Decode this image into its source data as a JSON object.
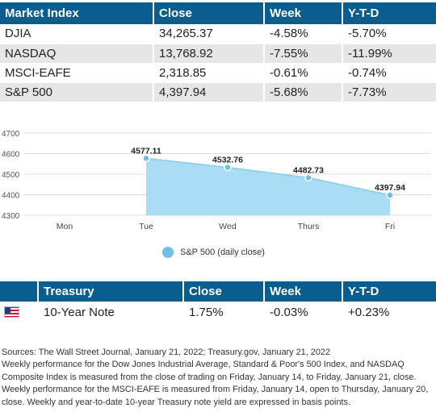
{
  "market_table": {
    "headers": [
      "Market Index",
      "Close",
      "Week",
      "Y-T-D"
    ],
    "rows": [
      [
        "DJIA",
        "34,265.37",
        "-4.58%",
        "-5.70%"
      ],
      [
        "NASDAQ",
        "13,768.92",
        "-7.55%",
        "-11.99%"
      ],
      [
        "MSCI-EAFE",
        "2,318.85",
        "-0.61%",
        "-0.74%"
      ],
      [
        "S&P 500",
        "4,397.94",
        "-5.68%",
        "-7.73%"
      ]
    ]
  },
  "chart_data": {
    "type": "area",
    "categories": [
      "Mon",
      "Tue",
      "Wed",
      "Thurs",
      "Fri"
    ],
    "series": [
      {
        "name": "S&P 500 (daily close)",
        "values": [
          null,
          4577.11,
          4532.76,
          4482.73,
          4397.94
        ],
        "data_labels": [
          "",
          "4577.11",
          "4532.76",
          "4482.73",
          "4397.94"
        ]
      }
    ],
    "yticks": [
      "4700",
      "4600",
      "4500",
      "4400",
      "4300"
    ],
    "ylim": [
      4300,
      4700
    ],
    "grid": true,
    "legend_position": "bottom",
    "title": "",
    "xlabel": "",
    "ylabel": ""
  },
  "treasury_table": {
    "headers": [
      "",
      "Treasury",
      "Close",
      "Week",
      "Y-T-D"
    ],
    "rows": [
      {
        "flag_icon": "us-flag-icon",
        "name": "10-Year Note",
        "close": "1.75%",
        "week": "-0.03%",
        "ytd": "+0.23%"
      }
    ]
  },
  "notes": {
    "sources": "Sources: The Wall Street Journal, January 21, 2022; Treasury.gov, January 21, 2022",
    "text": "Weekly performance for the Dow Jones Industrial Average, Standard & Poor's 500 Index, and NASDAQ Composite Index is measured from the close of trading on Friday, January 14, to Friday, January 21, close. Weekly performance for the MSCI-EAFE is measured from Friday, January 14, open to Thursday, January 20, close. Weekly and year-to-date 10-year Treasury note yield are expressed in basis points."
  },
  "colors": {
    "header_bg": "#0a5d8f",
    "row_alt_bg": "#e6e6e6",
    "area_fill": "#a9dcf5",
    "area_line": "#8ccbea",
    "marker": "#6cc0e8"
  }
}
